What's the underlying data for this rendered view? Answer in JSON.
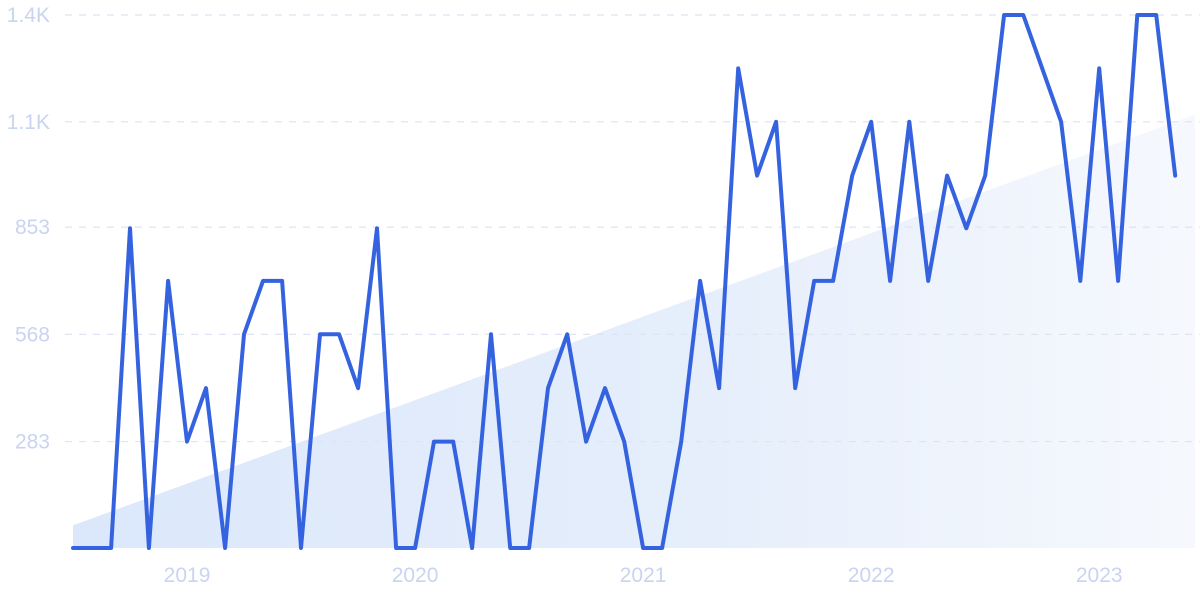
{
  "chart_data": {
    "type": "line",
    "title": "",
    "xlabel": "",
    "ylabel": "",
    "ylim": [
      0,
      1417
    ],
    "yticks": [
      {
        "value": 283,
        "label": "283"
      },
      {
        "value": 568,
        "label": "568"
      },
      {
        "value": 853,
        "label": "853"
      },
      {
        "value": 1133,
        "label": "1.1K"
      },
      {
        "value": 1417,
        "label": "1.4K"
      }
    ],
    "xticks": [
      {
        "value": 2019.0,
        "label": "2019"
      },
      {
        "value": 2020.0,
        "label": "2020"
      },
      {
        "value": 2021.0,
        "label": "2021"
      },
      {
        "value": 2022.0,
        "label": "2022"
      },
      {
        "value": 2023.0,
        "label": "2023"
      }
    ],
    "xlim": [
      2018.5,
      2023.42
    ],
    "grid": true,
    "colors": {
      "line": "#3563e0",
      "trend": "#dce8fb",
      "tick": "#c9d4f2",
      "grid": "#dde4f3"
    },
    "series": [
      {
        "values": [
          [
            2018.5,
            0
          ],
          [
            2018.583,
            0
          ],
          [
            2018.667,
            0
          ],
          [
            2018.75,
            850
          ],
          [
            2018.833,
            0
          ],
          [
            2018.917,
            710
          ],
          [
            2019.0,
            283
          ],
          [
            2019.083,
            425
          ],
          [
            2019.167,
            0
          ],
          [
            2019.25,
            568
          ],
          [
            2019.333,
            710
          ],
          [
            2019.417,
            710
          ],
          [
            2019.5,
            0
          ],
          [
            2019.583,
            568
          ],
          [
            2019.667,
            568
          ],
          [
            2019.75,
            425
          ],
          [
            2019.833,
            850
          ],
          [
            2019.917,
            0
          ],
          [
            2020.0,
            0
          ],
          [
            2020.083,
            283
          ],
          [
            2020.167,
            283
          ],
          [
            2020.25,
            0
          ],
          [
            2020.333,
            568
          ],
          [
            2020.417,
            0
          ],
          [
            2020.5,
            0
          ],
          [
            2020.583,
            425
          ],
          [
            2020.667,
            568
          ],
          [
            2020.75,
            283
          ],
          [
            2020.833,
            425
          ],
          [
            2020.917,
            283
          ],
          [
            2021.0,
            0
          ],
          [
            2021.083,
            0
          ],
          [
            2021.167,
            283
          ],
          [
            2021.25,
            710
          ],
          [
            2021.333,
            425
          ],
          [
            2021.417,
            1275
          ],
          [
            2021.5,
            990
          ],
          [
            2021.583,
            1133
          ],
          [
            2021.667,
            425
          ],
          [
            2021.75,
            710
          ],
          [
            2021.833,
            710
          ],
          [
            2021.917,
            990
          ],
          [
            2022.0,
            1133
          ],
          [
            2022.083,
            710
          ],
          [
            2022.167,
            1133
          ],
          [
            2022.25,
            710
          ],
          [
            2022.333,
            990
          ],
          [
            2022.417,
            850
          ],
          [
            2022.5,
            990
          ],
          [
            2022.583,
            1417
          ],
          [
            2022.667,
            1417
          ],
          [
            2022.75,
            1275
          ],
          [
            2022.833,
            1133
          ],
          [
            2022.917,
            710
          ],
          [
            2023.0,
            1275
          ],
          [
            2023.083,
            710
          ],
          [
            2023.167,
            1417
          ],
          [
            2023.25,
            1417
          ],
          [
            2023.333,
            990
          ]
        ]
      }
    ],
    "trend": {
      "from": [
        2018.5,
        60
      ],
      "to": [
        2023.333,
        1133
      ]
    }
  }
}
